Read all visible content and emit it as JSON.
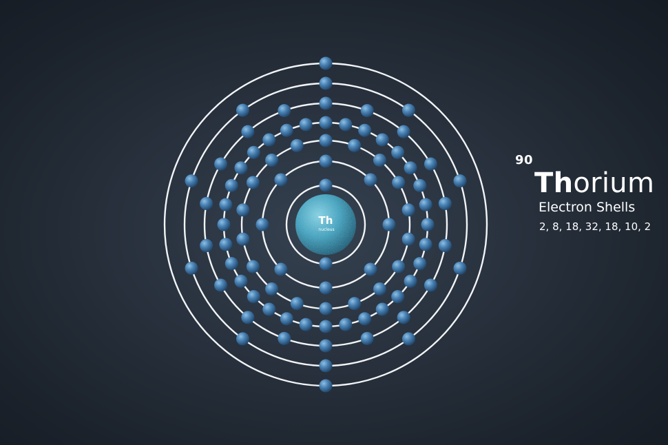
{
  "element": {
    "atomic_number": "90",
    "symbol": "Th",
    "name_rest": "orium",
    "nucleus_symbol": "Th",
    "nucleus_caption": "nucleus"
  },
  "shells": {
    "title": "Electron Shells",
    "counts_text": "2, 8, 18, 32, 18, 10, 2",
    "counts": [
      2,
      8,
      18,
      32,
      18,
      10,
      2
    ]
  },
  "colors": {
    "orbit": "#f2f4f6",
    "electron": "#3f77a8",
    "nucleus": "#4aa6c1",
    "background": "#28313d"
  }
}
